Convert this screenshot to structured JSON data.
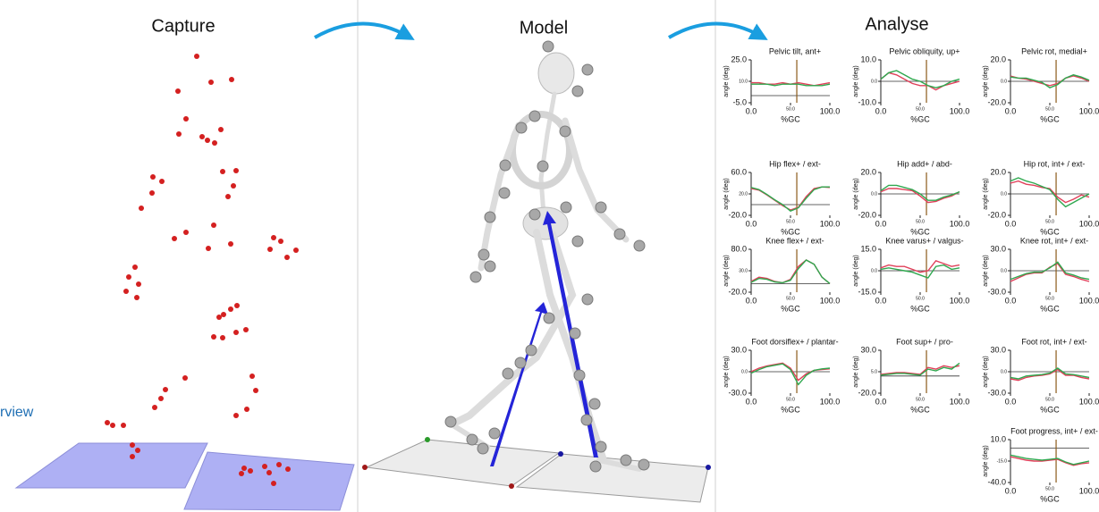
{
  "panels": {
    "capture": "Capture",
    "model": "Model",
    "analyse": "Analyse"
  },
  "sidebar_text": "rview",
  "chart_data": [
    {
      "type": "line",
      "title": "Pelvic tilt, ant+",
      "ylabel": "angle (deg)",
      "xlabel": "%GC",
      "x": [
        0,
        10,
        20,
        30,
        40,
        50,
        60,
        70,
        80,
        90,
        100
      ],
      "xlim": [
        0,
        100
      ],
      "xticks": [
        {
          "value": 0,
          "label": "0.0"
        },
        {
          "value": 50,
          "label": "50.0"
        },
        {
          "value": 100,
          "label": "100.0"
        }
      ],
      "ylim": [
        -5,
        25
      ],
      "yticks": [
        {
          "value": -5,
          "label": "-5.0"
        },
        {
          "value": 10,
          "label": "10.0"
        },
        {
          "value": 25,
          "label": "25.0"
        }
      ],
      "event_x": 58,
      "series": [
        {
          "color": "#e0405a",
          "values": [
            9,
            9,
            8,
            8,
            9,
            8,
            9,
            8,
            7,
            8,
            9
          ]
        },
        {
          "color": "#2fa84f",
          "values": [
            8,
            8,
            8,
            7,
            8,
            8,
            8,
            7,
            7,
            7,
            8
          ]
        }
      ]
    },
    {
      "type": "line",
      "title": "Pelvic obliquity, up+",
      "ylabel": "angle (deg)",
      "xlabel": "%GC",
      "x": [
        0,
        10,
        20,
        30,
        40,
        50,
        60,
        70,
        80,
        90,
        100
      ],
      "xlim": [
        0,
        100
      ],
      "xticks": [
        {
          "value": 0,
          "label": "0.0"
        },
        {
          "value": 50,
          "label": "50.0"
        },
        {
          "value": 100,
          "label": "100.0"
        }
      ],
      "ylim": [
        -10,
        10
      ],
      "yticks": [
        {
          "value": -10,
          "label": "-10.0"
        },
        {
          "value": 0,
          "label": "0.0"
        },
        {
          "value": 10,
          "label": "10.0"
        }
      ],
      "event_x": 58,
      "series": [
        {
          "color": "#e0405a",
          "values": [
            1,
            4,
            3,
            1,
            -1,
            -2,
            -2,
            -4,
            -2,
            -1,
            0
          ]
        },
        {
          "color": "#2fa84f",
          "values": [
            1,
            4,
            5,
            3,
            1,
            0,
            -2,
            -3,
            -2,
            0,
            1
          ]
        }
      ]
    },
    {
      "type": "line",
      "title": "Pelvic rot, medial+",
      "ylabel": "angle (deg)",
      "xlabel": "%GC",
      "x": [
        0,
        10,
        20,
        30,
        40,
        50,
        60,
        70,
        80,
        90,
        100
      ],
      "xlim": [
        0,
        100
      ],
      "xticks": [
        {
          "value": 0,
          "label": "0.0"
        },
        {
          "value": 50,
          "label": "50.0"
        },
        {
          "value": 100,
          "label": "100.0"
        }
      ],
      "ylim": [
        -20,
        20
      ],
      "yticks": [
        {
          "value": -20,
          "label": "-20.0"
        },
        {
          "value": 0,
          "label": "0.0"
        },
        {
          "value": 20,
          "label": "20.0"
        }
      ],
      "event_x": 58,
      "series": [
        {
          "color": "#e0405a",
          "values": [
            5,
            3,
            2,
            0,
            -2,
            -4,
            -2,
            3,
            5,
            3,
            0
          ]
        },
        {
          "color": "#2fa84f",
          "values": [
            4,
            3,
            3,
            1,
            -1,
            -6,
            -3,
            3,
            6,
            4,
            1
          ]
        }
      ]
    },
    {
      "type": "line",
      "title": "Hip flex+ / ext-",
      "ylabel": "angle (deg)",
      "xlabel": "%GC",
      "x": [
        0,
        10,
        20,
        30,
        40,
        50,
        60,
        70,
        80,
        90,
        100
      ],
      "xlim": [
        0,
        100
      ],
      "xticks": [
        {
          "value": 0,
          "label": "0.0"
        },
        {
          "value": 50,
          "label": "50.0"
        },
        {
          "value": 100,
          "label": "100.0"
        }
      ],
      "ylim": [
        -20,
        60
      ],
      "yticks": [
        {
          "value": -20,
          "label": "-20.0"
        },
        {
          "value": 20,
          "label": "20.0"
        },
        {
          "value": 60,
          "label": "60.0"
        }
      ],
      "event_x": 58,
      "series": [
        {
          "color": "#e0405a",
          "values": [
            30,
            27,
            18,
            8,
            -2,
            -10,
            -5,
            15,
            30,
            33,
            32
          ]
        },
        {
          "color": "#2fa84f",
          "values": [
            32,
            28,
            19,
            9,
            0,
            -12,
            -6,
            12,
            28,
            33,
            33
          ]
        }
      ]
    },
    {
      "type": "line",
      "title": "Hip add+ / abd-",
      "ylabel": "angle (deg)",
      "xlabel": "%GC",
      "x": [
        0,
        10,
        20,
        30,
        40,
        50,
        60,
        70,
        80,
        90,
        100
      ],
      "xlim": [
        0,
        100
      ],
      "xticks": [
        {
          "value": 0,
          "label": "0.0"
        },
        {
          "value": 50,
          "label": "50.0"
        },
        {
          "value": 100,
          "label": "100.0"
        }
      ],
      "ylim": [
        -20,
        20
      ],
      "yticks": [
        {
          "value": -20,
          "label": "-20.0"
        },
        {
          "value": 0,
          "label": "0.0"
        },
        {
          "value": 20,
          "label": "20.0"
        }
      ],
      "event_x": 58,
      "series": [
        {
          "color": "#e0405a",
          "values": [
            2,
            5,
            5,
            4,
            3,
            -2,
            -8,
            -7,
            -4,
            -2,
            2
          ]
        },
        {
          "color": "#2fa84f",
          "values": [
            3,
            8,
            8,
            6,
            4,
            0,
            -6,
            -6,
            -3,
            -1,
            2
          ]
        }
      ]
    },
    {
      "type": "line",
      "title": "Hip rot, int+ / ext-",
      "ylabel": "angle (deg)",
      "xlabel": "%GC",
      "x": [
        0,
        10,
        20,
        30,
        40,
        50,
        60,
        70,
        80,
        90,
        100
      ],
      "xlim": [
        0,
        100
      ],
      "xticks": [
        {
          "value": 0,
          "label": "0.0"
        },
        {
          "value": 50,
          "label": "50.0"
        },
        {
          "value": 100,
          "label": "100.0"
        }
      ],
      "ylim": [
        -20,
        20
      ],
      "yticks": [
        {
          "value": -20,
          "label": "-20.0"
        },
        {
          "value": 0,
          "label": "0.0"
        },
        {
          "value": 20,
          "label": "20.0"
        }
      ],
      "event_x": 58,
      "series": [
        {
          "color": "#e0405a",
          "values": [
            10,
            12,
            9,
            8,
            6,
            5,
            -3,
            -8,
            -5,
            -1,
            -3
          ]
        },
        {
          "color": "#2fa84f",
          "values": [
            12,
            15,
            12,
            10,
            7,
            4,
            -5,
            -12,
            -8,
            -4,
            0
          ]
        }
      ]
    },
    {
      "type": "line",
      "title": "Knee flex+ / ext-",
      "ylabel": "angle (deg)",
      "xlabel": "%GC",
      "x": [
        0,
        10,
        20,
        30,
        40,
        50,
        60,
        70,
        80,
        90,
        100
      ],
      "xlim": [
        0,
        100
      ],
      "xticks": [
        {
          "value": 0,
          "label": "0.0"
        },
        {
          "value": 50,
          "label": "50.0"
        },
        {
          "value": 100,
          "label": "100.0"
        }
      ],
      "ylim": [
        -20,
        80
      ],
      "yticks": [
        {
          "value": -20,
          "label": "-20.0"
        },
        {
          "value": 30,
          "label": "30.0"
        },
        {
          "value": 80,
          "label": "80.0"
        }
      ],
      "event_x": 58,
      "series": [
        {
          "color": "#e0405a",
          "values": [
            5,
            15,
            12,
            5,
            2,
            10,
            40,
            55,
            45,
            15,
            0
          ]
        },
        {
          "color": "#2fa84f",
          "values": [
            3,
            12,
            10,
            4,
            2,
            8,
            35,
            55,
            45,
            15,
            0
          ]
        }
      ]
    },
    {
      "type": "line",
      "title": "Knee varus+ / valgus-",
      "ylabel": "angle (deg)",
      "xlabel": "%GC",
      "x": [
        0,
        10,
        20,
        30,
        40,
        50,
        60,
        70,
        80,
        90,
        100
      ],
      "xlim": [
        0,
        100
      ],
      "xticks": [
        {
          "value": 0,
          "label": "0.0"
        },
        {
          "value": 50,
          "label": "50.0"
        },
        {
          "value": 100,
          "label": "100.0"
        }
      ],
      "ylim": [
        -15,
        15
      ],
      "yticks": [
        {
          "value": -15,
          "label": "-15.0"
        },
        {
          "value": 0,
          "label": "0.0"
        },
        {
          "value": 15,
          "label": "15.0"
        }
      ],
      "event_x": 58,
      "series": [
        {
          "color": "#e0405a",
          "values": [
            2,
            4,
            3,
            3,
            1,
            -1,
            0,
            7,
            5,
            3,
            4
          ]
        },
        {
          "color": "#2fa84f",
          "values": [
            1,
            2,
            1,
            0,
            -1,
            -3,
            -5,
            3,
            4,
            1,
            2
          ]
        }
      ]
    },
    {
      "type": "line",
      "title": "Knee rot, int+ / ext-",
      "ylabel": "angle (deg)",
      "xlabel": "%GC",
      "x": [
        0,
        10,
        20,
        30,
        40,
        50,
        60,
        70,
        80,
        90,
        100
      ],
      "xlim": [
        0,
        100
      ],
      "xticks": [
        {
          "value": 0,
          "label": "0.0"
        },
        {
          "value": 50,
          "label": "50.0"
        },
        {
          "value": 100,
          "label": "100.0"
        }
      ],
      "ylim": [
        -30,
        30
      ],
      "yticks": [
        {
          "value": -30,
          "label": "-30.0"
        },
        {
          "value": 0,
          "label": "0.0"
        },
        {
          "value": 30,
          "label": "30.0"
        }
      ],
      "event_x": 58,
      "series": [
        {
          "color": "#e0405a",
          "values": [
            -15,
            -10,
            -5,
            -3,
            -3,
            5,
            10,
            -5,
            -8,
            -12,
            -15
          ]
        },
        {
          "color": "#2fa84f",
          "values": [
            -12,
            -8,
            -4,
            -2,
            -2,
            4,
            12,
            -3,
            -6,
            -10,
            -12
          ]
        }
      ]
    },
    {
      "type": "line",
      "title": "Foot dorsiflex+ / plantar-",
      "ylabel": "angle (deg)",
      "xlabel": "%GC",
      "x": [
        0,
        10,
        20,
        30,
        40,
        50,
        60,
        70,
        80,
        90,
        100
      ],
      "xlim": [
        0,
        100
      ],
      "xticks": [
        {
          "value": 0,
          "label": "0.0"
        },
        {
          "value": 50,
          "label": "50.0"
        },
        {
          "value": 100,
          "label": "100.0"
        }
      ],
      "ylim": [
        -30,
        30
      ],
      "yticks": [
        {
          "value": -30,
          "label": "-30.0"
        },
        {
          "value": 0,
          "label": "0.0"
        },
        {
          "value": 30,
          "label": "30.0"
        }
      ],
      "event_x": 58,
      "series": [
        {
          "color": "#e0405a",
          "values": [
            0,
            5,
            8,
            10,
            12,
            5,
            -12,
            -3,
            2,
            3,
            4
          ]
        },
        {
          "color": "#2fa84f",
          "values": [
            -2,
            3,
            7,
            9,
            11,
            3,
            -18,
            -5,
            2,
            4,
            5
          ]
        }
      ]
    },
    {
      "type": "line",
      "title": "Foot sup+ / pro-",
      "ylabel": "angle (deg)",
      "xlabel": "%GC",
      "x": [
        0,
        10,
        20,
        30,
        40,
        50,
        60,
        70,
        80,
        90,
        100
      ],
      "xlim": [
        0,
        100
      ],
      "xticks": [
        {
          "value": 0,
          "label": "0.0"
        },
        {
          "value": 50,
          "label": "50.0"
        },
        {
          "value": 100,
          "label": "100.0"
        }
      ],
      "ylim": [
        -20,
        30
      ],
      "yticks": [
        {
          "value": -20,
          "label": "-20.0"
        },
        {
          "value": 5,
          "label": "5.0"
        },
        {
          "value": 30,
          "label": "30.0"
        }
      ],
      "event_x": 58,
      "series": [
        {
          "color": "#e0405a",
          "values": [
            2,
            3,
            4,
            4,
            3,
            2,
            10,
            8,
            12,
            10,
            12
          ]
        },
        {
          "color": "#2fa84f",
          "values": [
            1,
            2,
            3,
            3,
            2,
            1,
            8,
            6,
            10,
            8,
            15
          ]
        }
      ]
    },
    {
      "type": "line",
      "title": "Foot rot, int+ / ext-",
      "ylabel": "angle (deg)",
      "xlabel": "%GC",
      "x": [
        0,
        10,
        20,
        30,
        40,
        50,
        60,
        70,
        80,
        90,
        100
      ],
      "xlim": [
        0,
        100
      ],
      "xticks": [
        {
          "value": 0,
          "label": "0.0"
        },
        {
          "value": 50,
          "label": "50.0"
        },
        {
          "value": 100,
          "label": "100.0"
        }
      ],
      "ylim": [
        -30,
        30
      ],
      "yticks": [
        {
          "value": -30,
          "label": "-30.0"
        },
        {
          "value": 0,
          "label": "0.0"
        },
        {
          "value": 30,
          "label": "30.0"
        }
      ],
      "event_x": 58,
      "series": [
        {
          "color": "#e0405a",
          "values": [
            -10,
            -12,
            -8,
            -6,
            -5,
            -3,
            3,
            -5,
            -5,
            -8,
            -10
          ]
        },
        {
          "color": "#2fa84f",
          "values": [
            -8,
            -10,
            -6,
            -5,
            -4,
            -2,
            5,
            -3,
            -4,
            -6,
            -8
          ]
        }
      ]
    },
    {
      "type": "line",
      "title": "Foot progress, int+ / ext-",
      "ylabel": "angle (deg)",
      "xlabel": "%GC",
      "x": [
        0,
        10,
        20,
        30,
        40,
        50,
        60,
        70,
        80,
        90,
        100
      ],
      "xlim": [
        0,
        100
      ],
      "xticks": [
        {
          "value": 0,
          "label": "0.0"
        },
        {
          "value": 50,
          "label": "50.0"
        },
        {
          "value": 100,
          "label": "100.0"
        }
      ],
      "ylim": [
        -40,
        10
      ],
      "yticks": [
        {
          "value": -40,
          "label": "-40.0"
        },
        {
          "value": -15,
          "label": "-15.0"
        },
        {
          "value": 10,
          "label": "10.0"
        }
      ],
      "event_x": 58,
      "series": [
        {
          "color": "#e0405a",
          "values": [
            -10,
            -12,
            -14,
            -15,
            -15,
            -14,
            -13,
            -17,
            -20,
            -18,
            -17
          ]
        },
        {
          "color": "#2fa84f",
          "values": [
            -8,
            -10,
            -12,
            -13,
            -14,
            -13,
            -12,
            -16,
            -19,
            -17,
            -15
          ]
        }
      ]
    }
  ]
}
